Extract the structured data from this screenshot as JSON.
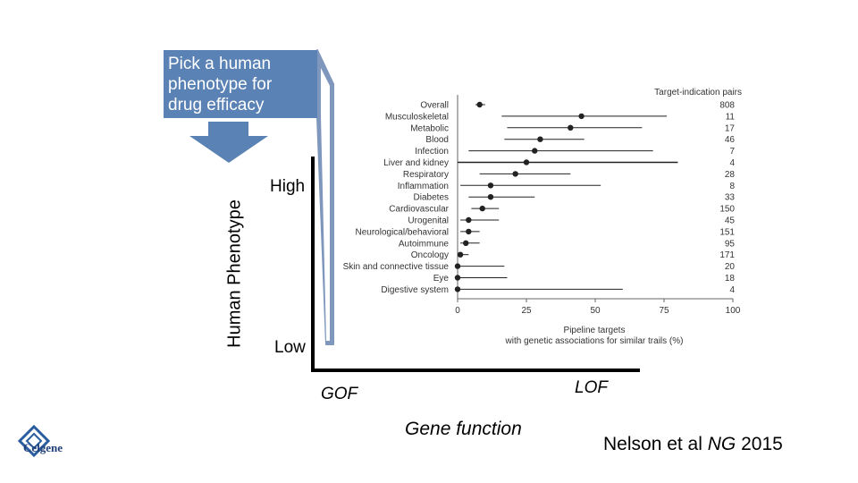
{
  "callout": {
    "lines": [
      "Pick a human",
      "phenotype for",
      "drug efficacy"
    ]
  },
  "axes": {
    "y_label": "Human Phenotype",
    "high": "High",
    "low": "Low",
    "gof": "GOF",
    "lof": "LOF",
    "x_label": "Gene function"
  },
  "citation": {
    "authors": "Nelson et al",
    "journal": "NG",
    "year": "2015"
  },
  "logo": {
    "name": "Celgene"
  },
  "colors": {
    "callout": "#5b82b5",
    "axis": "#000000",
    "connector": "#7f97bd"
  },
  "chart_data": {
    "type": "scatter",
    "subtype": "dot-with-interval",
    "header_right": "Target-indication pairs",
    "xlabel_line1": "Pipeline targets",
    "xlabel_line2": "with genetic associations for similar trails (%)",
    "xlim": [
      0,
      100
    ],
    "xticks": [
      "0",
      "25",
      "50",
      "75",
      "100"
    ],
    "rows": [
      {
        "label": "Overall",
        "value": 8,
        "low": 6.5,
        "high": 10,
        "pairs": "808"
      },
      {
        "label": "Musculoskeletal",
        "value": 45,
        "low": 16,
        "high": 76,
        "pairs": "11"
      },
      {
        "label": "Metabolic",
        "value": 41,
        "low": 18,
        "high": 67,
        "pairs": "17"
      },
      {
        "label": "Blood",
        "value": 30,
        "low": 17,
        "high": 46,
        "pairs": "46"
      },
      {
        "label": "Infection",
        "value": 28,
        "low": 4,
        "high": 71,
        "pairs": "7"
      },
      {
        "label": "Liver and kidney",
        "value": 25,
        "low": 0,
        "high": 80,
        "pairs": "4"
      },
      {
        "label": "Respiratory",
        "value": 21,
        "low": 8,
        "high": 41,
        "pairs": "28"
      },
      {
        "label": "Inflammation",
        "value": 12,
        "low": 1,
        "high": 52,
        "pairs": "8"
      },
      {
        "label": "Diabetes",
        "value": 12,
        "low": 4,
        "high": 28,
        "pairs": "33"
      },
      {
        "label": "Cardiovascular",
        "value": 9,
        "low": 5,
        "high": 15,
        "pairs": "150"
      },
      {
        "label": "Urogenital",
        "value": 4,
        "low": 1,
        "high": 15,
        "pairs": "45"
      },
      {
        "label": "Neurological/behavioral",
        "value": 4,
        "low": 1,
        "high": 8,
        "pairs": "151"
      },
      {
        "label": "Autoimmune",
        "value": 3,
        "low": 1,
        "high": 8,
        "pairs": "95"
      },
      {
        "label": "Oncology",
        "value": 1,
        "low": 0,
        "high": 4,
        "pairs": "171"
      },
      {
        "label": "Skin and connective tissue",
        "value": 0,
        "low": 0,
        "high": 17,
        "pairs": "20"
      },
      {
        "label": "Eye",
        "value": 0,
        "low": 0,
        "high": 18,
        "pairs": "18"
      },
      {
        "label": "Digestive system",
        "value": 0,
        "low": 0,
        "high": 60,
        "pairs": "4"
      }
    ]
  }
}
